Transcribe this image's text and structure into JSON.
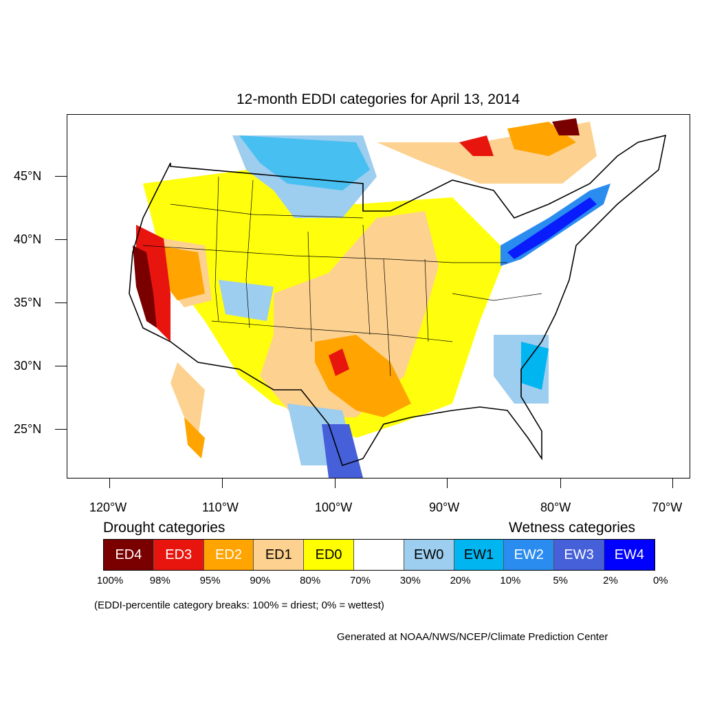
{
  "title": "12-month EDDI categories for April 13, 2014",
  "lat_labels": [
    "45°N",
    "40°N",
    "35°N",
    "30°N",
    "25°N"
  ],
  "lon_labels": [
    "120°W",
    "110°W",
    "100°W",
    "90°W",
    "80°W",
    "70°W"
  ],
  "legend": {
    "drought_heading": "Drought categories",
    "wetness_heading": "Wetness categories",
    "categories": [
      {
        "label": "ED4",
        "color": "#7a0000",
        "text_color": "#ffffff"
      },
      {
        "label": "ED3",
        "color": "#e8150f",
        "text_color": "#ffffff"
      },
      {
        "label": "ED2",
        "color": "#ffa400",
        "text_color": "#ffffff"
      },
      {
        "label": "ED1",
        "color": "#fdd18f",
        "text_color": "#000000"
      },
      {
        "label": "ED0",
        "color": "#ffff00",
        "text_color": "#000000"
      },
      {
        "label": "",
        "color": "#ffffff",
        "text_color": "#000000"
      },
      {
        "label": "EW0",
        "color": "#9dcdef",
        "text_color": "#000000"
      },
      {
        "label": "EW1",
        "color": "#00b5f0",
        "text_color": "#000000"
      },
      {
        "label": "EW2",
        "color": "#2b8cf0",
        "text_color": "#ffffff"
      },
      {
        "label": "EW3",
        "color": "#4560d9",
        "text_color": "#ffffff"
      },
      {
        "label": "EW4",
        "color": "#0000ff",
        "text_color": "#ffffff"
      }
    ],
    "percent_breaks": [
      "100%",
      "98%",
      "95%",
      "90%",
      "80%",
      "70%",
      "30%",
      "20%",
      "10%",
      "5%",
      "2%",
      "0%"
    ]
  },
  "note": "(EDDI-percentile category breaks: 100% = driest; 0% = wettest)",
  "credit": "Generated at NOAA/NWS/NCEP/Climate Prediction Center"
}
